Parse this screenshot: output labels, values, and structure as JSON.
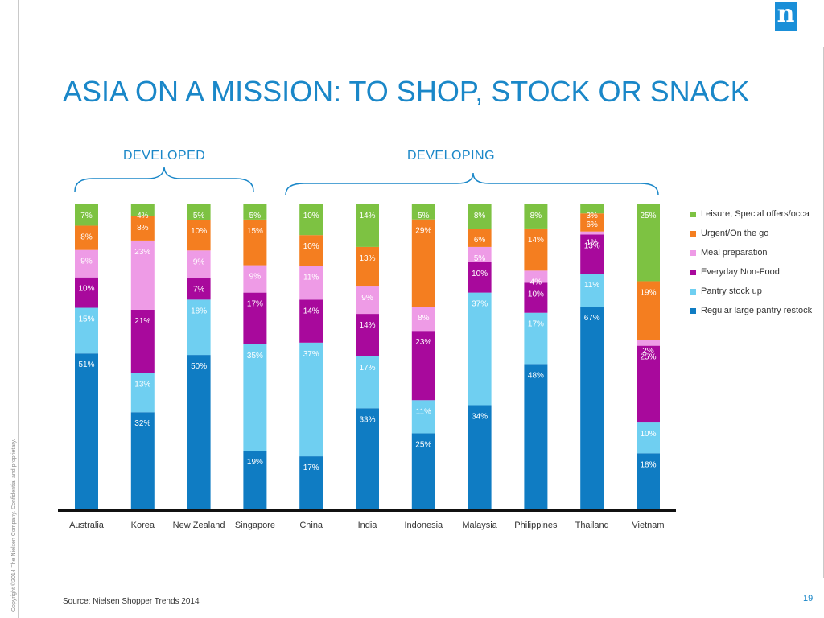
{
  "title": "ASIA ON A MISSION: TO SHOP, STOCK OR SNACK",
  "groups": {
    "developed": "DEVELOPED",
    "developing": "DEVELOPING"
  },
  "brand": {
    "logo_letter": "n"
  },
  "footer": {
    "source": "Source: Nielsen Shopper Trends 2014",
    "page_number": "19",
    "copyright": "Copyright ©2014 The Nielsen Company. Confidential and proprietary."
  },
  "chart_data": {
    "type": "bar",
    "stacked": true,
    "normalized_to_100": true,
    "categories": [
      "Australia",
      "Korea",
      "New Zealand",
      "Singapore",
      "China",
      "India",
      "Indonesia",
      "Malaysia",
      "Philippines",
      "Thailand",
      "Vietnam"
    ],
    "series": [
      {
        "name": "Regular large pantry restock",
        "color": "#0f7cc3",
        "values": [
          51,
          32,
          50,
          19,
          17,
          33,
          25,
          34,
          48,
          67,
          18
        ]
      },
      {
        "name": "Pantry stock up",
        "color": "#6fcff1",
        "values": [
          15,
          13,
          18,
          35,
          37,
          17,
          11,
          37,
          17,
          11,
          10
        ]
      },
      {
        "name": "Everyday Non-Food",
        "color": "#a8099c",
        "values": [
          10,
          21,
          7,
          17,
          14,
          14,
          23,
          10,
          10,
          13,
          25
        ]
      },
      {
        "name": "Meal preparation",
        "color": "#ee9be6",
        "values": [
          9,
          23,
          9,
          9,
          11,
          9,
          8,
          5,
          4,
          1,
          2
        ]
      },
      {
        "name": "Urgent/On the go",
        "color": "#f47e20",
        "values": [
          8,
          8,
          10,
          15,
          10,
          13,
          29,
          6,
          14,
          6,
          19
        ]
      },
      {
        "name": "Leisure, Special offers/occa",
        "color": "#7dc242",
        "values": [
          7,
          4,
          5,
          5,
          10,
          14,
          5,
          8,
          8,
          3,
          25
        ]
      }
    ],
    "labels": [
      [
        "51%",
        "32%",
        "50%",
        "19%",
        "17%",
        "33%",
        "25%",
        "34%",
        "48%",
        "67%",
        "18%"
      ],
      [
        "15%",
        "13%",
        "18%",
        "35%",
        "37%",
        "17%",
        "11%",
        "37%",
        "17%",
        "11%",
        "10%"
      ],
      [
        "10%",
        "21%",
        "7%",
        "17%",
        "14%",
        "14%",
        "23%",
        "10%",
        "10%",
        "13%",
        "25%"
      ],
      [
        "9%",
        "23%",
        "9%",
        "9%",
        "11%",
        "9%",
        "8%",
        "5%",
        "4%",
        "1%",
        "2%"
      ],
      [
        "8%",
        "8%",
        "10%",
        "15%",
        "10%",
        "13%",
        "29%",
        "6%",
        "14%",
        "6%",
        "19%"
      ],
      [
        "7%",
        "4%",
        "5%",
        "5%",
        "10%",
        "14%",
        "5%",
        "8%",
        "8%",
        "3%",
        "25%"
      ]
    ],
    "ylim": [
      0,
      100
    ],
    "legend_position": "right",
    "grid": false
  }
}
